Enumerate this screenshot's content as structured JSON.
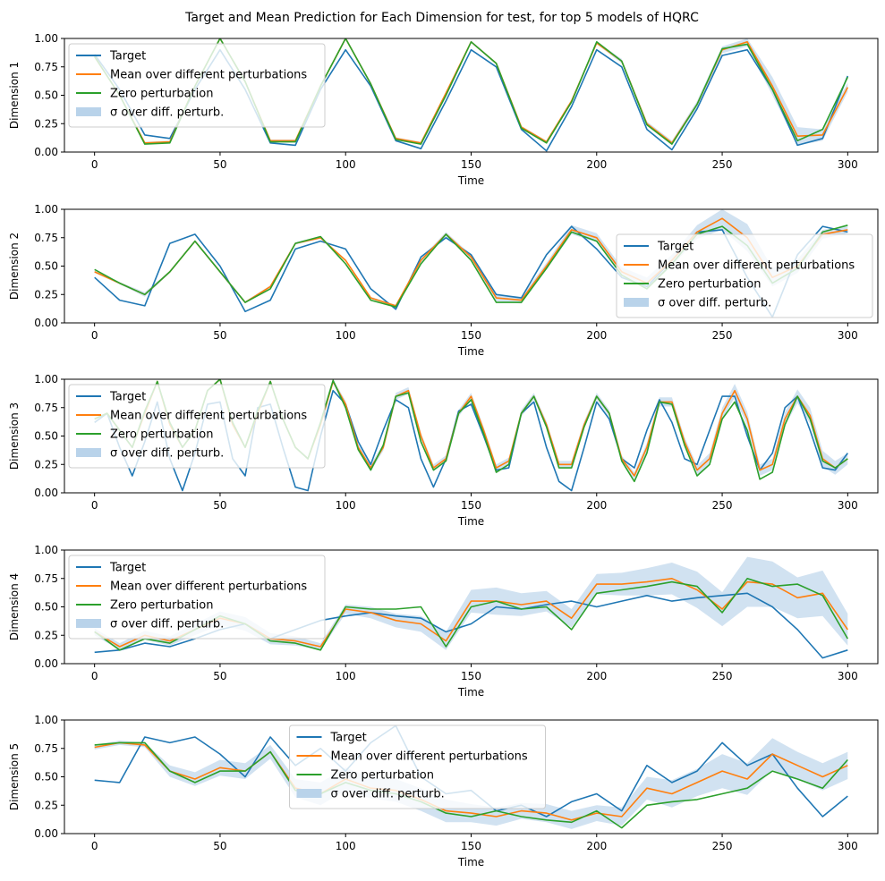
{
  "figure_title": "Target and Mean Prediction for Each Dimension for test, for top 5 models of HQRC",
  "colors": {
    "target": "#1f77b4",
    "mean": "#ff7f0e",
    "zero": "#2ca02c",
    "sigma_fill": "#b9d3ea"
  },
  "legend_entries": {
    "target": "Target",
    "mean": "Mean over different perturbations",
    "zero": "Zero perturbation",
    "sigma": "σ over diff. perturb."
  },
  "chart_data": [
    {
      "type": "line",
      "xlabel": "Time",
      "ylabel": "Dimension 1",
      "xlim": [
        -12,
        312
      ],
      "ylim": [
        0,
        1
      ],
      "xticks": [
        0,
        50,
        100,
        150,
        200,
        250,
        300
      ],
      "yticks": [
        "0.00",
        "0.25",
        "0.50",
        "0.75",
        "1.00"
      ],
      "legend_position": "upper-left",
      "x": [
        0,
        10,
        20,
        30,
        40,
        50,
        60,
        70,
        80,
        90,
        100,
        110,
        120,
        130,
        140,
        150,
        160,
        170,
        180,
        190,
        200,
        210,
        220,
        230,
        240,
        250,
        260,
        270,
        280,
        290,
        300
      ],
      "series": [
        {
          "name": "Target",
          "key": "target",
          "values": [
            0.86,
            0.55,
            0.15,
            0.12,
            0.55,
            0.9,
            0.55,
            0.08,
            0.06,
            0.55,
            0.9,
            0.58,
            0.1,
            0.03,
            0.45,
            0.9,
            0.75,
            0.2,
            0.01,
            0.4,
            0.9,
            0.75,
            0.2,
            0.02,
            0.38,
            0.85,
            0.9,
            0.55,
            0.06,
            0.12,
            0.67
          ]
        },
        {
          "name": "Mean over different perturbations",
          "key": "mean",
          "values": [
            0.84,
            0.5,
            0.08,
            0.09,
            0.58,
            1.0,
            0.62,
            0.1,
            0.1,
            0.58,
            1.0,
            0.6,
            0.12,
            0.08,
            0.52,
            0.97,
            0.78,
            0.22,
            0.09,
            0.45,
            0.96,
            0.8,
            0.25,
            0.08,
            0.42,
            0.9,
            0.97,
            0.58,
            0.14,
            0.15,
            0.57
          ]
        },
        {
          "name": "Zero perturbation",
          "key": "zero",
          "values": [
            0.84,
            0.5,
            0.07,
            0.08,
            0.58,
            1.0,
            0.62,
            0.09,
            0.09,
            0.58,
            1.0,
            0.6,
            0.11,
            0.07,
            0.5,
            0.97,
            0.78,
            0.21,
            0.08,
            0.44,
            0.97,
            0.8,
            0.24,
            0.07,
            0.42,
            0.91,
            0.95,
            0.55,
            0.1,
            0.2,
            0.66
          ]
        }
      ],
      "sigma": [
        0.01,
        0.01,
        0.01,
        0.01,
        0.01,
        0.01,
        0.01,
        0.01,
        0.01,
        0.01,
        0.01,
        0.01,
        0.01,
        0.01,
        0.01,
        0.01,
        0.01,
        0.01,
        0.01,
        0.01,
        0.01,
        0.02,
        0.02,
        0.02,
        0.03,
        0.03,
        0.04,
        0.08,
        0.08,
        0.05,
        0.04
      ]
    },
    {
      "type": "line",
      "xlabel": "Time",
      "ylabel": "Dimension 2",
      "xlim": [
        -12,
        312
      ],
      "ylim": [
        0,
        1
      ],
      "xticks": [
        0,
        50,
        100,
        150,
        200,
        250,
        300
      ],
      "yticks": [
        "0.00",
        "0.25",
        "0.50",
        "0.75",
        "1.00"
      ],
      "legend_position": "lower-right",
      "x": [
        0,
        10,
        20,
        30,
        40,
        50,
        60,
        70,
        80,
        90,
        100,
        110,
        120,
        130,
        140,
        150,
        160,
        170,
        180,
        190,
        200,
        210,
        220,
        230,
        240,
        250,
        260,
        270,
        280,
        290,
        300
      ],
      "series": [
        {
          "name": "Target",
          "key": "target",
          "values": [
            0.4,
            0.2,
            0.15,
            0.7,
            0.78,
            0.5,
            0.1,
            0.2,
            0.65,
            0.72,
            0.65,
            0.3,
            0.12,
            0.58,
            0.75,
            0.6,
            0.25,
            0.22,
            0.6,
            0.85,
            0.65,
            0.4,
            0.32,
            0.55,
            0.8,
            0.82,
            0.4,
            0.05,
            0.6,
            0.85,
            0.8
          ]
        },
        {
          "name": "Mean over different perturbations",
          "key": "mean",
          "values": [
            0.45,
            0.35,
            0.25,
            0.45,
            0.72,
            0.45,
            0.18,
            0.32,
            0.7,
            0.75,
            0.55,
            0.22,
            0.15,
            0.55,
            0.78,
            0.58,
            0.22,
            0.2,
            0.5,
            0.82,
            0.75,
            0.45,
            0.35,
            0.55,
            0.8,
            0.92,
            0.75,
            0.4,
            0.5,
            0.78,
            0.82
          ]
        },
        {
          "name": "Zero perturbation",
          "key": "zero",
          "values": [
            0.47,
            0.35,
            0.25,
            0.45,
            0.72,
            0.45,
            0.18,
            0.3,
            0.7,
            0.76,
            0.52,
            0.2,
            0.14,
            0.52,
            0.78,
            0.55,
            0.18,
            0.18,
            0.48,
            0.8,
            0.72,
            0.42,
            0.3,
            0.52,
            0.78,
            0.85,
            0.68,
            0.35,
            0.48,
            0.8,
            0.86
          ]
        }
      ],
      "sigma": [
        0.01,
        0.01,
        0.02,
        0.01,
        0.01,
        0.01,
        0.01,
        0.01,
        0.01,
        0.01,
        0.01,
        0.01,
        0.01,
        0.02,
        0.02,
        0.02,
        0.03,
        0.03,
        0.03,
        0.04,
        0.04,
        0.04,
        0.05,
        0.05,
        0.06,
        0.1,
        0.12,
        0.08,
        0.06,
        0.04,
        0.03
      ]
    },
    {
      "type": "line",
      "xlabel": "Time",
      "ylabel": "Dimension 3",
      "xlim": [
        -12,
        312
      ],
      "ylim": [
        0,
        1
      ],
      "xticks": [
        0,
        50,
        100,
        150,
        200,
        250,
        300
      ],
      "yticks": [
        "0.00",
        "0.25",
        "0.50",
        "0.75",
        "1.00"
      ],
      "legend_position": "upper-left",
      "x": [
        0,
        5,
        10,
        15,
        20,
        25,
        30,
        35,
        40,
        45,
        50,
        55,
        60,
        65,
        70,
        75,
        80,
        85,
        90,
        95,
        100,
        105,
        110,
        115,
        120,
        125,
        130,
        135,
        140,
        145,
        150,
        155,
        160,
        165,
        170,
        175,
        180,
        185,
        190,
        195,
        200,
        205,
        210,
        215,
        220,
        225,
        230,
        235,
        240,
        245,
        250,
        255,
        260,
        265,
        270,
        275,
        280,
        285,
        290,
        295,
        300
      ],
      "series": [
        {
          "name": "Target",
          "key": "target",
          "values": [
            0.62,
            0.7,
            0.4,
            0.15,
            0.45,
            0.8,
            0.3,
            0.02,
            0.35,
            0.78,
            0.8,
            0.3,
            0.15,
            0.75,
            0.78,
            0.4,
            0.05,
            0.02,
            0.5,
            0.9,
            0.78,
            0.45,
            0.25,
            0.55,
            0.82,
            0.75,
            0.3,
            0.05,
            0.3,
            0.72,
            0.78,
            0.5,
            0.2,
            0.22,
            0.7,
            0.8,
            0.4,
            0.1,
            0.02,
            0.4,
            0.8,
            0.65,
            0.3,
            0.22,
            0.55,
            0.82,
            0.62,
            0.3,
            0.25,
            0.55,
            0.85,
            0.85,
            0.5,
            0.2,
            0.35,
            0.75,
            0.85,
            0.55,
            0.22,
            0.2,
            0.35
          ]
        },
        {
          "name": "Mean over different perturbations",
          "key": "mean",
          "values": [
            0.65,
            0.7,
            0.55,
            0.4,
            0.7,
            0.98,
            0.6,
            0.4,
            0.55,
            0.9,
            1.0,
            0.6,
            0.4,
            0.7,
            0.98,
            0.65,
            0.4,
            0.3,
            0.6,
            0.98,
            0.78,
            0.4,
            0.22,
            0.4,
            0.85,
            0.9,
            0.5,
            0.22,
            0.3,
            0.7,
            0.85,
            0.55,
            0.22,
            0.28,
            0.7,
            0.85,
            0.6,
            0.25,
            0.25,
            0.6,
            0.85,
            0.7,
            0.3,
            0.15,
            0.4,
            0.8,
            0.8,
            0.45,
            0.2,
            0.3,
            0.7,
            0.9,
            0.65,
            0.2,
            0.25,
            0.65,
            0.85,
            0.68,
            0.3,
            0.22,
            0.3
          ]
        },
        {
          "name": "Zero perturbation",
          "key": "zero",
          "values": [
            0.65,
            0.7,
            0.55,
            0.4,
            0.72,
            0.98,
            0.62,
            0.4,
            0.55,
            0.9,
            1.0,
            0.62,
            0.4,
            0.72,
            0.98,
            0.65,
            0.4,
            0.3,
            0.62,
            0.99,
            0.75,
            0.38,
            0.2,
            0.42,
            0.85,
            0.88,
            0.45,
            0.2,
            0.28,
            0.7,
            0.82,
            0.52,
            0.18,
            0.25,
            0.7,
            0.85,
            0.58,
            0.22,
            0.22,
            0.58,
            0.85,
            0.7,
            0.28,
            0.1,
            0.35,
            0.8,
            0.78,
            0.42,
            0.15,
            0.25,
            0.65,
            0.8,
            0.55,
            0.12,
            0.18,
            0.6,
            0.85,
            0.65,
            0.28,
            0.22,
            0.3
          ]
        }
      ],
      "sigma": [
        0.01,
        0.01,
        0.01,
        0.01,
        0.01,
        0.01,
        0.01,
        0.01,
        0.01,
        0.01,
        0.01,
        0.01,
        0.01,
        0.01,
        0.01,
        0.01,
        0.01,
        0.01,
        0.01,
        0.02,
        0.03,
        0.03,
        0.03,
        0.03,
        0.03,
        0.03,
        0.03,
        0.03,
        0.03,
        0.03,
        0.03,
        0.03,
        0.03,
        0.03,
        0.03,
        0.03,
        0.03,
        0.03,
        0.03,
        0.03,
        0.03,
        0.03,
        0.03,
        0.03,
        0.04,
        0.04,
        0.04,
        0.04,
        0.04,
        0.05,
        0.05,
        0.06,
        0.06,
        0.05,
        0.05,
        0.06,
        0.06,
        0.07,
        0.07,
        0.06,
        0.05
      ]
    },
    {
      "type": "line",
      "xlabel": "Time",
      "ylabel": "Dimension 4",
      "xlim": [
        -12,
        312
      ],
      "ylim": [
        0,
        1
      ],
      "xticks": [
        0,
        50,
        100,
        150,
        200,
        250,
        300
      ],
      "yticks": [
        "0.00",
        "0.25",
        "0.50",
        "0.75",
        "1.00"
      ],
      "legend_position": "upper-left",
      "x": [
        0,
        10,
        20,
        30,
        40,
        50,
        60,
        70,
        80,
        90,
        100,
        110,
        120,
        130,
        140,
        150,
        160,
        170,
        180,
        190,
        200,
        210,
        220,
        230,
        240,
        250,
        260,
        270,
        280,
        290,
        300
      ],
      "series": [
        {
          "name": "Target",
          "key": "target",
          "values": [
            0.1,
            0.12,
            0.18,
            0.15,
            0.22,
            0.3,
            0.35,
            0.22,
            0.3,
            0.38,
            0.42,
            0.45,
            0.42,
            0.4,
            0.28,
            0.35,
            0.5,
            0.48,
            0.52,
            0.55,
            0.5,
            0.55,
            0.6,
            0.55,
            0.58,
            0.6,
            0.62,
            0.5,
            0.3,
            0.05,
            0.12
          ]
        },
        {
          "name": "Mean over different perturbations",
          "key": "mean",
          "values": [
            0.28,
            0.15,
            0.25,
            0.2,
            0.3,
            0.4,
            0.35,
            0.22,
            0.2,
            0.15,
            0.48,
            0.45,
            0.38,
            0.35,
            0.2,
            0.55,
            0.55,
            0.52,
            0.55,
            0.4,
            0.7,
            0.7,
            0.72,
            0.75,
            0.65,
            0.48,
            0.72,
            0.7,
            0.58,
            0.62,
            0.3
          ]
        },
        {
          "name": "Zero perturbation",
          "key": "zero",
          "values": [
            0.28,
            0.12,
            0.22,
            0.18,
            0.3,
            0.42,
            0.35,
            0.2,
            0.18,
            0.12,
            0.5,
            0.48,
            0.48,
            0.5,
            0.15,
            0.5,
            0.55,
            0.48,
            0.5,
            0.3,
            0.62,
            0.65,
            0.68,
            0.72,
            0.68,
            0.45,
            0.75,
            0.68,
            0.7,
            0.6,
            0.22
          ]
        }
      ],
      "sigma": [
        0.03,
        0.03,
        0.04,
        0.04,
        0.05,
        0.06,
        0.06,
        0.05,
        0.04,
        0.03,
        0.04,
        0.05,
        0.06,
        0.07,
        0.08,
        0.1,
        0.12,
        0.1,
        0.09,
        0.08,
        0.09,
        0.1,
        0.12,
        0.14,
        0.16,
        0.15,
        0.22,
        0.2,
        0.18,
        0.2,
        0.14
      ]
    },
    {
      "type": "line",
      "xlabel": "Time",
      "ylabel": "Dimension 5",
      "xlim": [
        -12,
        312
      ],
      "ylim": [
        0,
        1
      ],
      "xticks": [
        0,
        50,
        100,
        150,
        200,
        250,
        300
      ],
      "yticks": [
        "0.00",
        "0.25",
        "0.50",
        "0.75",
        "1.00"
      ],
      "legend_position": "upper-center",
      "x": [
        0,
        10,
        20,
        30,
        40,
        50,
        60,
        70,
        80,
        90,
        100,
        110,
        120,
        130,
        140,
        150,
        160,
        170,
        180,
        190,
        200,
        210,
        220,
        230,
        240,
        250,
        260,
        270,
        280,
        290,
        300
      ],
      "series": [
        {
          "name": "Target",
          "key": "target",
          "values": [
            0.47,
            0.45,
            0.85,
            0.8,
            0.85,
            0.7,
            0.5,
            0.85,
            0.6,
            0.75,
            0.55,
            0.8,
            0.95,
            0.5,
            0.35,
            0.38,
            0.2,
            0.25,
            0.15,
            0.28,
            0.35,
            0.2,
            0.6,
            0.45,
            0.55,
            0.8,
            0.6,
            0.7,
            0.4,
            0.15,
            0.33
          ]
        },
        {
          "name": "Mean over different perturbations",
          "key": "mean",
          "values": [
            0.76,
            0.8,
            0.78,
            0.55,
            0.48,
            0.58,
            0.55,
            0.72,
            0.4,
            0.35,
            0.48,
            0.4,
            0.38,
            0.3,
            0.2,
            0.18,
            0.15,
            0.2,
            0.18,
            0.12,
            0.18,
            0.15,
            0.4,
            0.35,
            0.45,
            0.55,
            0.48,
            0.7,
            0.6,
            0.5,
            0.6
          ]
        },
        {
          "name": "Zero perturbation",
          "key": "zero",
          "values": [
            0.78,
            0.8,
            0.8,
            0.55,
            0.45,
            0.55,
            0.55,
            0.72,
            0.38,
            0.35,
            0.45,
            0.38,
            0.35,
            0.28,
            0.18,
            0.15,
            0.2,
            0.15,
            0.12,
            0.1,
            0.2,
            0.05,
            0.25,
            0.28,
            0.3,
            0.35,
            0.4,
            0.55,
            0.48,
            0.4,
            0.65
          ]
        }
      ],
      "sigma": [
        0.02,
        0.02,
        0.02,
        0.05,
        0.06,
        0.07,
        0.07,
        0.06,
        0.08,
        0.1,
        0.1,
        0.09,
        0.1,
        0.1,
        0.1,
        0.08,
        0.08,
        0.07,
        0.08,
        0.08,
        0.07,
        0.08,
        0.1,
        0.12,
        0.12,
        0.15,
        0.14,
        0.14,
        0.12,
        0.12,
        0.12
      ]
    }
  ]
}
